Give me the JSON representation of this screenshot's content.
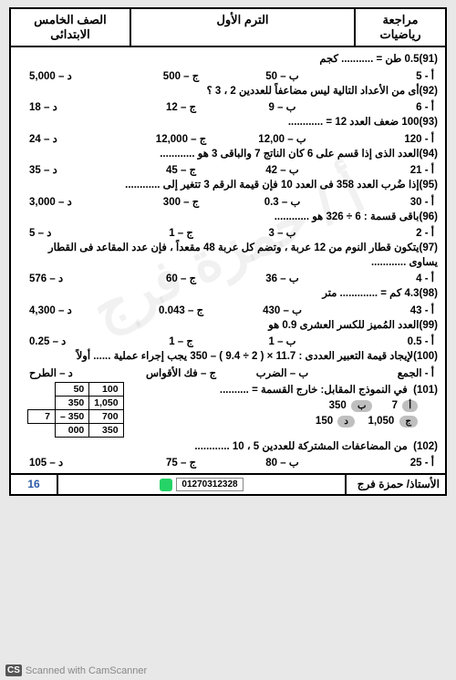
{
  "header": {
    "subject": "مراجعة رياضيات",
    "term": "الترم الأول",
    "grade": "الصف الخامس الابتدائى"
  },
  "watermark": "أ / حمزة فرج",
  "questions": [
    {
      "n": "(91)",
      "text": "0.5 طن = ........... كجم",
      "opts": [
        "أ -   5",
        "ب –   50",
        "ج –   500",
        "د –   5,000"
      ]
    },
    {
      "n": "(92)",
      "text": "أى من الأعداد التالية ليس مضاعفاً للعددين  2 ، 3 ؟",
      "opts": [
        "أ -   6",
        "ب –   9",
        "ج –   12",
        "د –   18"
      ]
    },
    {
      "n": "(93)",
      "text": "100 ضعف العدد 12 = ............",
      "opts": [
        "أ -   120",
        "ب –   12,00",
        "ج –   12,000",
        "د –   24"
      ]
    },
    {
      "n": "(94)",
      "text": "العدد الذى إذا قسم على 6 كان الناتج 7 والباقى 3 هو ............",
      "opts": [
        "أ -   21",
        "ب –   42",
        "ج –   45",
        "د –   35"
      ]
    },
    {
      "n": "(95)",
      "text": "إذا ضُرب العدد 358 فى العدد 10 فإن قيمة الرقم  3 تتغير إلى ............",
      "opts": [
        "أ -   30",
        "ب –   0.3",
        "ج –   300",
        "د –   3,000"
      ]
    },
    {
      "n": "(96)",
      "text": "باقى قسمة  : 6 ÷ 326 هو ............",
      "opts": [
        "أ -   2",
        "ب –   3",
        "ج –   1",
        "د –   5"
      ]
    },
    {
      "n": "(97)",
      "text": "يتكون قطار النوم من 12 عربة ، وتضم كل عربة 48 مقعداً ، فإن عدد المقاعد فى القطار يساوى ............",
      "opts": [
        "أ -   4",
        "ب –   36",
        "ج –   60",
        "د –   576"
      ]
    },
    {
      "n": "(98)",
      "text": "4.3 كم = ............. متر",
      "opts": [
        "أ -   43",
        "ب –   430",
        "ج –   0.043",
        "د –   4,300"
      ]
    },
    {
      "n": "(99)",
      "text": "العدد المُميز للكسر العشرى 0.9 هو",
      "opts": [
        "أ -   0.5",
        "ب –   1",
        "ج –   1",
        "د –   0.25"
      ]
    },
    {
      "n": "(100)",
      "text": "لإيجاد قيمة التعبير العددى : 11.7 × ( 2 ÷ 9.4 ) – 350 يجب إجراء عملية ...... أولاً",
      "opts": [
        "أ -   الجمع",
        "ب –   الضرب",
        "ج –   فك الأقواس",
        "د –   الطرح"
      ]
    }
  ],
  "q101": {
    "n": "(101)",
    "text": "في النموذج المقابل: خارج القسمة = ..........",
    "pills": {
      "a": "أ",
      "av": "7",
      "b": "ب",
      "bv": "350",
      "c": "ج",
      "cv": "1,050",
      "d": "د",
      "dv": "150"
    },
    "table": {
      "head": [
        "50",
        "100"
      ],
      "r1": [
        "350",
        "1,050"
      ],
      "r2l": "7",
      "r2": [
        "– 350",
        "   700"
      ],
      "r3": [
        "000",
        "   350"
      ]
    }
  },
  "q102": {
    "n": "(102)",
    "text": "من المضاعفات المشتركة للعددين 5 ، 10 ............",
    "opts": [
      "أ -   25",
      "ب –   80",
      "ج –   75",
      "د –   105"
    ]
  },
  "footer": {
    "teacher": "الأستاذ/ حمزة فرج",
    "phone": "01270312328",
    "page": "16"
  },
  "scan": "Scanned with CamScanner",
  "cs": "CS"
}
